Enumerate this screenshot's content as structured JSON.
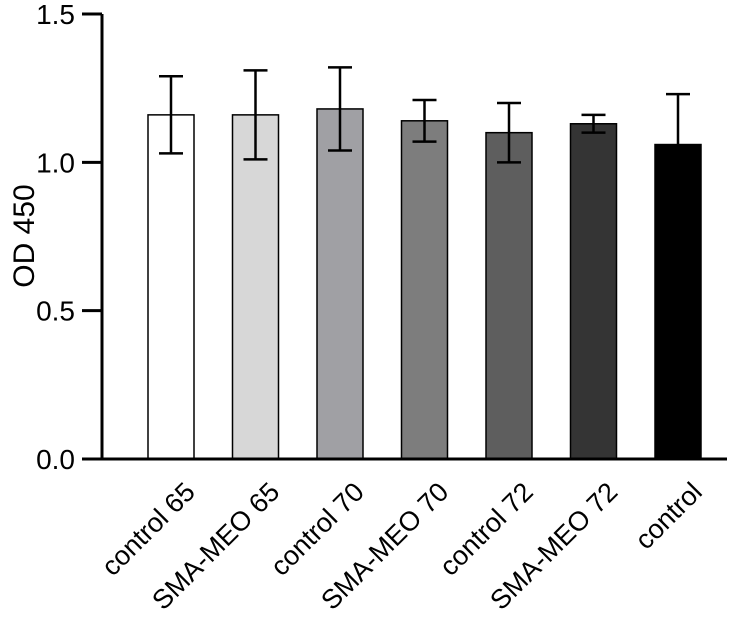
{
  "chart_data": {
    "type": "bar",
    "title": "",
    "xlabel": "",
    "ylabel": "OD 450",
    "ylim": [
      0,
      1.5
    ],
    "yticks": [
      0.0,
      0.5,
      1.0,
      1.5
    ],
    "ytick_labels": [
      "0.0",
      "0.5",
      "1.0",
      "1.5"
    ],
    "categories": [
      "control 65",
      "SMA-MEO 65",
      "control 70",
      "SMA-MEO 70",
      "control 72",
      "SMA-MEO 72",
      "control"
    ],
    "values": [
      1.16,
      1.16,
      1.18,
      1.14,
      1.1,
      1.13,
      1.06
    ],
    "errors": [
      0.13,
      0.15,
      0.14,
      0.07,
      0.1,
      0.03,
      0.17
    ],
    "bar_colors": [
      "#ffffff",
      "#d7d7d7",
      "#a0a0a4",
      "#7d7d7d",
      "#5e5e5e",
      "#343434",
      "#000000"
    ],
    "grid": false,
    "legend": "none"
  }
}
